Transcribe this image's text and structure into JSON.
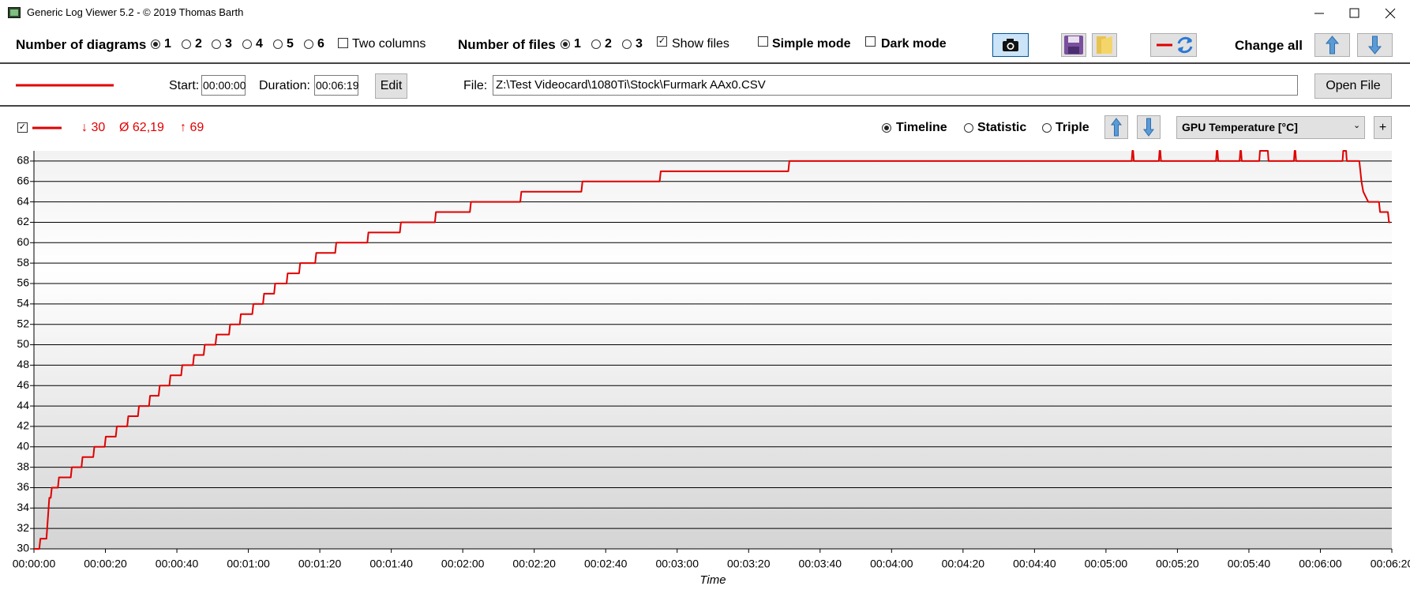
{
  "window": {
    "title": "Generic Log Viewer 5.2 - © 2019 Thomas Barth"
  },
  "toolbar": {
    "diagrams_label": "Number of diagrams",
    "diagram_options": [
      "1",
      "2",
      "3",
      "4",
      "5",
      "6"
    ],
    "two_columns": "Two columns",
    "files_label": "Number of files",
    "file_options": [
      "1",
      "2",
      "3"
    ],
    "show_files": "Show files",
    "simple_mode": "Simple mode",
    "dark_mode": "Dark mode",
    "change_all": "Change all"
  },
  "file_bar": {
    "start_label": "Start:",
    "start": "00:00:00",
    "duration_label": "Duration:",
    "duration": "00:06:19",
    "edit": "Edit",
    "file_label": "File:",
    "file": "Z:\\Test Videocard\\1080Ti\\Stock\\Furmark AAx0.CSV",
    "open_file": "Open File"
  },
  "chart_header": {
    "min": "↓ 30",
    "avg": "Ø 62,19",
    "max": "↑ 69",
    "modes": [
      "Timeline",
      "Statistic",
      "Triple"
    ],
    "channel": "GPU Temperature [°C]",
    "add": "+"
  },
  "chart_data": {
    "type": "line",
    "x_label": "Time",
    "color": "#e00000",
    "grid": true,
    "xlim": [
      0,
      380
    ],
    "ylim": [
      30,
      69
    ],
    "yticks": [
      30,
      32,
      34,
      36,
      38,
      40,
      42,
      44,
      46,
      48,
      50,
      52,
      54,
      56,
      58,
      60,
      62,
      64,
      66,
      68
    ],
    "xticks": [
      {
        "value": 0,
        "label": "00:00:00"
      },
      {
        "value": 20,
        "label": "00:00:20"
      },
      {
        "value": 40,
        "label": "00:00:40"
      },
      {
        "value": 60,
        "label": "00:01:00"
      },
      {
        "value": 80,
        "label": "00:01:20"
      },
      {
        "value": 100,
        "label": "00:01:40"
      },
      {
        "value": 120,
        "label": "00:02:00"
      },
      {
        "value": 140,
        "label": "00:02:20"
      },
      {
        "value": 160,
        "label": "00:02:40"
      },
      {
        "value": 180,
        "label": "00:03:00"
      },
      {
        "value": 200,
        "label": "00:03:20"
      },
      {
        "value": 220,
        "label": "00:03:40"
      },
      {
        "value": 240,
        "label": "00:04:00"
      },
      {
        "value": 260,
        "label": "00:04:20"
      },
      {
        "value": 280,
        "label": "00:04:40"
      },
      {
        "value": 300,
        "label": "00:05:00"
      },
      {
        "value": 320,
        "label": "00:05:20"
      },
      {
        "value": 340,
        "label": "00:05:40"
      },
      {
        "value": 360,
        "label": "00:06:00"
      },
      {
        "value": 380,
        "label": "00:06:20"
      }
    ],
    "x": [
      0,
      1.5,
      1.8,
      3.5,
      4.3,
      4.7,
      5.0,
      6.7,
      7.0,
      10.3,
      10.6,
      13.3,
      13.6,
      16.6,
      16.9,
      19.8,
      20.1,
      22.9,
      23.2,
      26.1,
      26.4,
      29.1,
      29.4,
      32.2,
      32.5,
      34.9,
      35.2,
      37.9,
      38.2,
      41.2,
      41.5,
      44.5,
      44.8,
      47.5,
      47.8,
      50.8,
      51.1,
      54.6,
      54.9,
      57.6,
      57.9,
      61.1,
      61.4,
      64.1,
      64.4,
      67.2,
      67.5,
      70.7,
      71.0,
      74.2,
      74.5,
      78.7,
      79.0,
      84.3,
      84.6,
      93.3,
      93.6,
      102.4,
      102.7,
      112.2,
      112.5,
      122.0,
      122.3,
      136.1,
      136.4,
      153.2,
      153.5,
      175.1,
      175.4,
      211.1,
      211.4,
      307.2,
      307.4,
      307.6,
      307.8,
      314.8,
      315.0,
      315.2,
      315.4,
      330.8,
      331.0,
      331.2,
      331.4,
      337.4,
      337.6,
      337.8,
      338.0,
      342.9,
      343.1,
      345.3,
      345.5,
      352.6,
      352.8,
      353.0,
      353.2,
      366.2,
      366.4,
      367.2,
      367.4,
      370.9,
      371.5,
      372.0,
      373.4,
      376.4,
      376.7,
      378.9,
      379.2,
      379.6
    ],
    "values": [
      30,
      30,
      31,
      31,
      35,
      35,
      36,
      36,
      37,
      37,
      38,
      38,
      39,
      39,
      40,
      40,
      41,
      41,
      42,
      42,
      43,
      43,
      44,
      44,
      45,
      45,
      46,
      46,
      47,
      47,
      48,
      48,
      49,
      49,
      50,
      50,
      51,
      51,
      52,
      52,
      53,
      53,
      54,
      54,
      55,
      55,
      56,
      56,
      57,
      57,
      58,
      58,
      59,
      59,
      60,
      60,
      61,
      61,
      62,
      62,
      63,
      63,
      64,
      64,
      65,
      65,
      66,
      66,
      67,
      67,
      68,
      68,
      69,
      69,
      68,
      68,
      69,
      69,
      68,
      68,
      69,
      69,
      68,
      68,
      69,
      69,
      68,
      68,
      69,
      69,
      68,
      68,
      69,
      69,
      68,
      68,
      69,
      69,
      68,
      68,
      66,
      65,
      64,
      64,
      63,
      63,
      62,
      62
    ]
  }
}
